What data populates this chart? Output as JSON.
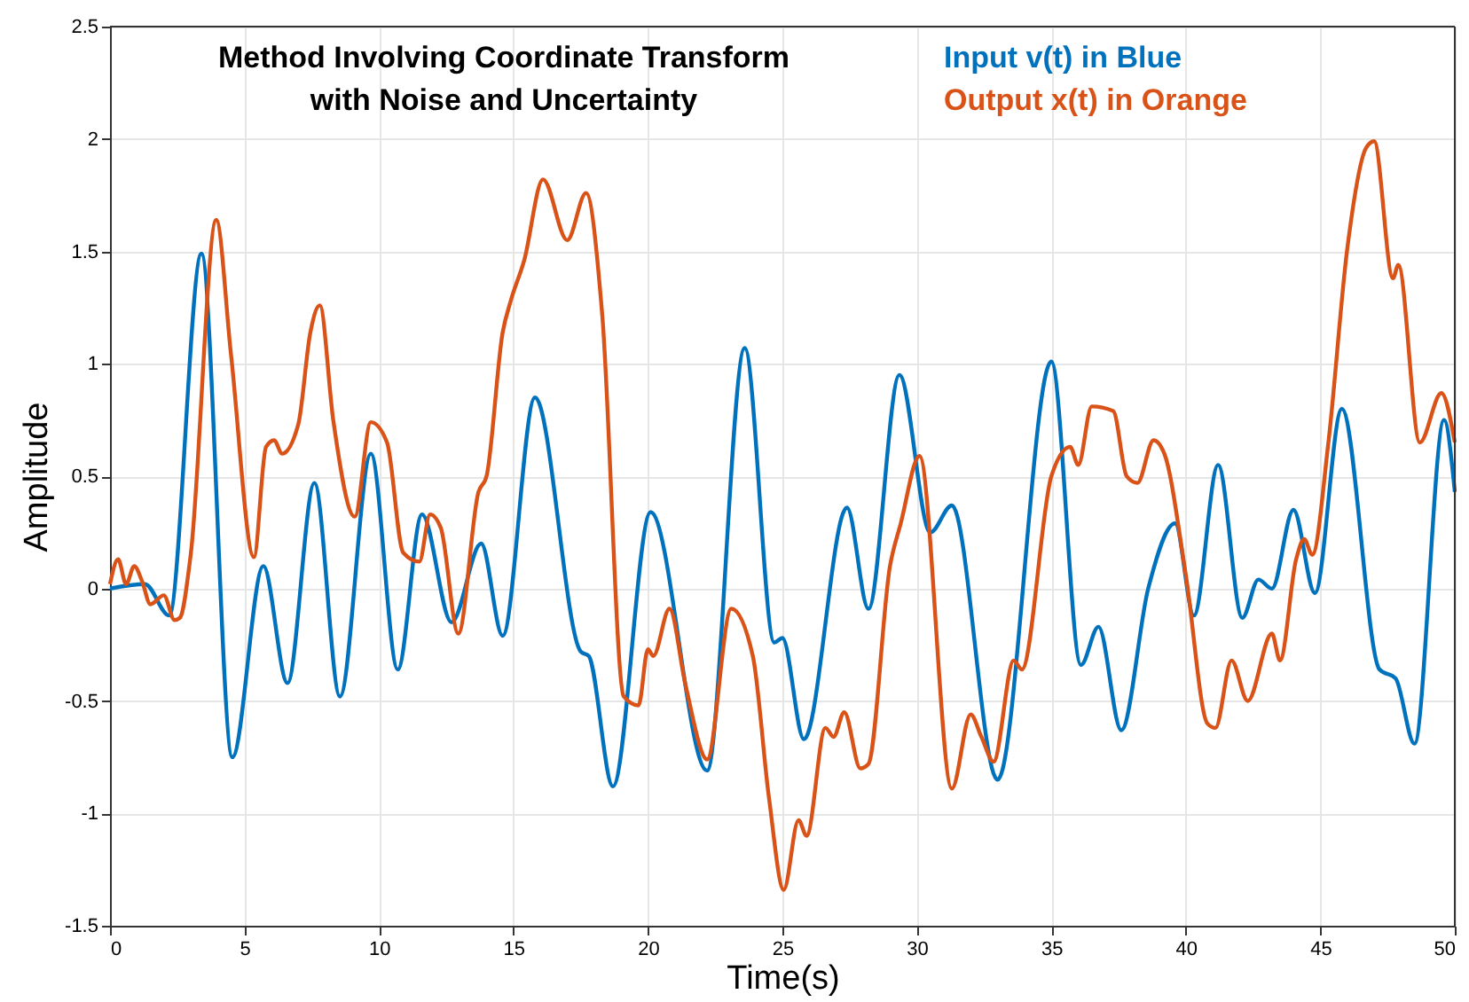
{
  "chart_data": {
    "type": "line",
    "title": "Method Involving Coordinate Transform\nwith Noise and Uncertainty",
    "xlabel": "Time(s)",
    "ylabel": "Amplitude",
    "xlim": [
      0,
      50
    ],
    "xticks": [
      0,
      5,
      10,
      15,
      20,
      25,
      30,
      35,
      40,
      45,
      50
    ],
    "ylim": [
      -1.5,
      2.5
    ],
    "yticks": [
      -1.5,
      -1,
      -0.5,
      0,
      0.5,
      1,
      1.5,
      2,
      2.5
    ],
    "grid": true,
    "legend": "top right",
    "marker": "none",
    "line_style": "solid",
    "series": [
      {
        "name": "Input v(t) in Blue",
        "color": "#0072bd",
        "x": [
          0,
          1.3,
          2.2,
          3.4,
          4.55,
          5.7,
          6.6,
          7.6,
          8.55,
          9.7,
          10.7,
          11.6,
          12.7,
          13.8,
          14.6,
          15.8,
          17.5,
          17.8,
          18.7,
          20.1,
          22.2,
          23.6,
          24.7,
          25.0,
          25.8,
          27.4,
          28.2,
          29.35,
          30.5,
          31.3,
          33.0,
          35.0,
          36.1,
          36.75,
          37.6,
          38.6,
          39.6,
          40.3,
          41.2,
          42.1,
          42.7,
          43.2,
          44.0,
          44.8,
          45.8,
          47.2,
          47.8,
          48.5,
          49.6,
          50
        ],
        "values": [
          0,
          0.02,
          -0.12,
          1.49,
          -0.75,
          0.1,
          -0.42,
          0.47,
          -0.48,
          0.6,
          -0.36,
          0.33,
          -0.15,
          0.2,
          -0.21,
          0.85,
          -0.28,
          -0.3,
          -0.88,
          0.34,
          -0.81,
          1.07,
          -0.24,
          -0.22,
          -0.67,
          0.36,
          -0.09,
          0.95,
          0.25,
          0.37,
          -0.85,
          1.01,
          -0.34,
          -0.17,
          -0.63,
          0,
          0.29,
          -0.12,
          0.55,
          -0.13,
          0.04,
          0,
          0.35,
          -0.02,
          0.8,
          -0.36,
          -0.4,
          -0.69,
          0.75,
          0.43
        ]
      },
      {
        "name": "Output x(t) in Orange",
        "color": "#d95319",
        "x": [
          0,
          0.3,
          0.6,
          0.9,
          1.2,
          1.5,
          2.0,
          2.4,
          2.6,
          3.0,
          3.95,
          4.5,
          5.35,
          5.8,
          6.1,
          6.4,
          7.0,
          7.45,
          7.8,
          8.3,
          9.1,
          9.7,
          10.3,
          10.9,
          11.5,
          11.9,
          12.3,
          12.95,
          13.7,
          14.0,
          14.6,
          14.9,
          15.4,
          16.1,
          17.0,
          17.7,
          18.3,
          19.1,
          19.65,
          20.0,
          20.2,
          20.8,
          21.4,
          22.2,
          23.1,
          23.9,
          24.5,
          25.05,
          25.6,
          25.9,
          26.6,
          26.9,
          27.3,
          27.9,
          28.2,
          29.0,
          29.4,
          30.1,
          31.3,
          32.0,
          32.4,
          32.85,
          33.6,
          33.9,
          35.0,
          35.7,
          36.0,
          36.5,
          37.3,
          37.8,
          38.2,
          38.8,
          39.2,
          40.0,
          40.8,
          41.1,
          41.7,
          42.3,
          43.2,
          43.5,
          44.1,
          44.4,
          44.7,
          45.3,
          46.0,
          46.7,
          47.0,
          47.7,
          47.9,
          48.7,
          49.5,
          50
        ],
        "values": [
          0.02,
          0.13,
          0.02,
          0.1,
          0.03,
          -0.07,
          -0.03,
          -0.14,
          -0.13,
          0.15,
          1.64,
          1.04,
          0.14,
          0.63,
          0.66,
          0.6,
          0.73,
          1.14,
          1.26,
          0.75,
          0.32,
          0.74,
          0.65,
          0.16,
          0.12,
          0.33,
          0.27,
          -0.2,
          0.43,
          0.5,
          1.14,
          1.28,
          1.46,
          1.82,
          1.55,
          1.76,
          1.22,
          -0.48,
          -0.52,
          -0.27,
          -0.3,
          -0.09,
          -0.43,
          -0.76,
          -0.09,
          -0.3,
          -0.93,
          -1.34,
          -1.03,
          -1.1,
          -0.62,
          -0.66,
          -0.55,
          -0.8,
          -0.78,
          0.1,
          0.29,
          0.59,
          -0.89,
          -0.56,
          -0.66,
          -0.77,
          -0.32,
          -0.36,
          0.5,
          0.63,
          0.55,
          0.81,
          0.79,
          0.5,
          0.47,
          0.66,
          0.6,
          0.06,
          -0.6,
          -0.62,
          -0.32,
          -0.5,
          -0.2,
          -0.32,
          0.13,
          0.22,
          0.15,
          0.65,
          1.51,
          1.96,
          1.99,
          1.38,
          1.44,
          0.65,
          0.87,
          0.65
        ]
      }
    ]
  }
}
